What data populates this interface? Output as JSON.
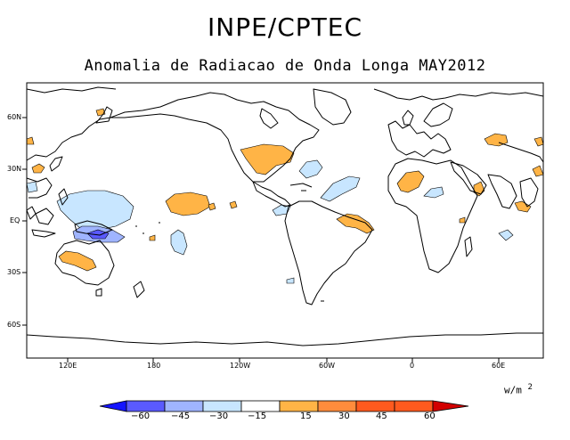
{
  "header": {
    "main_title": "INPE/CPTEC",
    "subtitle": "Anomalia de Radiacao de Onda Longa MAY2012"
  },
  "map": {
    "lat_labels": [
      "60N",
      "30N",
      "EQ",
      "30S",
      "60S"
    ],
    "lon_labels": [
      "120E",
      "180",
      "120W",
      "60W",
      "0",
      "60E"
    ]
  },
  "colorbar": {
    "units_label": "w/m",
    "units_exponent": "2",
    "ticks": [
      "−60",
      "−45",
      "−30",
      "−15",
      "15",
      "30",
      "45",
      "60"
    ],
    "colors": [
      "#1414ff",
      "#5a5aff",
      "#9fb4ff",
      "#c8e6ff",
      "#ffffff",
      "#ffb446",
      "#ff8c3c",
      "#ff5a1e",
      "#d20000"
    ]
  },
  "anomaly_colors": {
    "positive_30": "#ffb446",
    "negative_15": "#c8e6ff",
    "negative_30": "#9fb4ff",
    "negative_45": "#5a5aff"
  }
}
